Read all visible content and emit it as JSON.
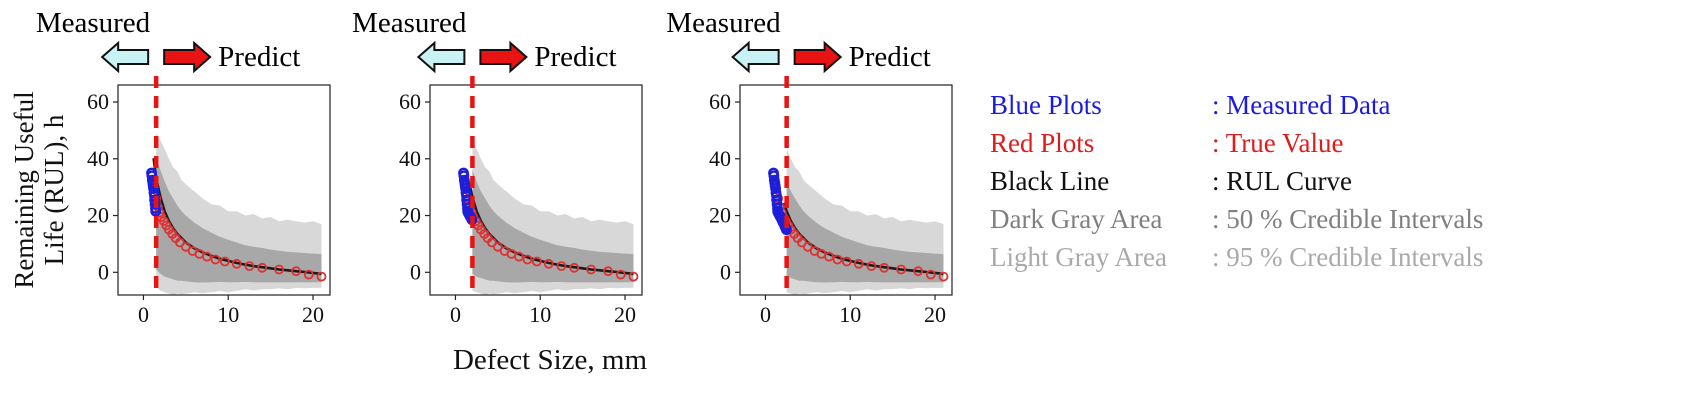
{
  "figure": {
    "y_axis_label": "Remaining Useful\nLife (RUL), h",
    "x_axis_label": "Defect Size, mm",
    "header": {
      "measured": "Measured",
      "predict": "Predict"
    }
  },
  "legend": {
    "items": [
      {
        "name": "Blue Plots",
        "desc": ": Measured Data",
        "color": "#1b1be0"
      },
      {
        "name": "Red Plots",
        "desc": ": True Value",
        "color": "#e01b1b"
      },
      {
        "name": "Black Line",
        "desc": ": RUL Curve",
        "color": "#111111"
      },
      {
        "name": "Dark Gray Area",
        "desc": ": 50 % Credible Intervals",
        "color": "#7f7f7f"
      },
      {
        "name": "Light Gray Area",
        "desc": ": 95 % Credible Intervals",
        "color": "#a9a9a9"
      }
    ]
  },
  "chart_data": {
    "type": "line",
    "title": "",
    "xlabel": "Defect Size, mm",
    "ylabel": "Remaining Useful Life (RUL), h",
    "xlim": [
      -3,
      22
    ],
    "ylim": [
      -8,
      66
    ],
    "x_ticks": [
      0,
      10,
      20
    ],
    "y_ticks": [
      0,
      20,
      40,
      60
    ],
    "grid": false,
    "band_x": [
      1.0,
      1.5,
      2,
      2.5,
      3,
      3.5,
      4,
      4.5,
      5,
      6,
      7,
      8,
      9,
      10,
      11,
      12,
      13,
      14,
      15,
      16,
      17,
      18,
      19,
      20,
      20.5,
      21
    ],
    "curve_y": [
      45,
      33,
      26.5,
      21.5,
      18,
      15.5,
      13.5,
      12,
      10.5,
      8.5,
      7,
      5.8,
      4.8,
      4,
      3.3,
      2.7,
      2.2,
      1.8,
      1.4,
      1.0,
      0.7,
      0.4,
      0.1,
      -0.2,
      -0.4,
      -0.6
    ],
    "band95_upper": [
      52,
      49,
      46.5,
      43.5,
      40,
      37,
      35.5,
      32.5,
      31,
      28.5,
      26,
      24,
      23.5,
      21.5,
      21.5,
      20,
      20.5,
      19,
      19.5,
      18,
      18.5,
      18,
      17.5,
      18,
      17.5,
      17
    ],
    "band95_lower": [
      -3,
      -5,
      -6.5,
      -7,
      -7.5,
      -8,
      -7.5,
      -7.8,
      -7.5,
      -7,
      -7.4,
      -7,
      -6.6,
      -7,
      -6.5,
      -6,
      -6.4,
      -6,
      -6,
      -5.6,
      -6,
      -5.5,
      -5.6,
      -5.5,
      -5.5,
      -5.5
    ],
    "band50_upper": [
      47,
      41,
      36,
      32,
      28.5,
      26,
      23.5,
      21.5,
      20,
      17.5,
      15.5,
      14,
      12.5,
      11.5,
      10.5,
      9.5,
      9,
      8.6,
      8,
      7.6,
      7.2,
      7,
      6.8,
      6.6,
      6.5,
      6.4
    ],
    "band50_lower": [
      5,
      1,
      -0.5,
      -1.5,
      -2,
      -2.5,
      -3,
      -3,
      -3.2,
      -3.5,
      -3.6,
      -3.5,
      -3.4,
      -3.5,
      -3.5,
      -3.4,
      -3.5,
      -3.5,
      -3.5,
      -3.5,
      -3.5,
      -3.5,
      -3.5,
      -3.5,
      -3.5,
      -3.5
    ],
    "true_points": [
      [
        1.5,
        26
      ],
      [
        1.7,
        23
      ],
      [
        1.9,
        21
      ],
      [
        2.1,
        19.5
      ],
      [
        2.4,
        18
      ],
      [
        2.7,
        16.5
      ],
      [
        3,
        15
      ],
      [
        3.4,
        13.5
      ],
      [
        3.8,
        12
      ],
      [
        4.3,
        10.5
      ],
      [
        5,
        9
      ],
      [
        5.8,
        7.5
      ],
      [
        6.6,
        6.5
      ],
      [
        7.5,
        5.5
      ],
      [
        8.5,
        4.5
      ],
      [
        9.6,
        3.8
      ],
      [
        11,
        3
      ],
      [
        12.5,
        2.2
      ],
      [
        14,
        1.6
      ],
      [
        16,
        1
      ],
      [
        18,
        0.4
      ],
      [
        19.5,
        -0.8
      ],
      [
        21,
        -1.5
      ]
    ],
    "panels": [
      {
        "label": "panel-1",
        "measure_line_x": 1.5,
        "measured_points": [
          [
            0.95,
            35
          ],
          [
            1.0,
            34
          ],
          [
            1.05,
            32.5
          ],
          [
            1.1,
            31.5
          ],
          [
            1.15,
            30.5
          ],
          [
            1.2,
            29.5
          ],
          [
            1.25,
            28
          ],
          [
            1.3,
            27
          ],
          [
            1.32,
            25.5
          ],
          [
            1.38,
            24
          ],
          [
            1.42,
            22.5
          ],
          [
            1.45,
            21.5
          ]
        ]
      },
      {
        "label": "panel-2",
        "measure_line_x": 2.0,
        "measured_points": [
          [
            0.95,
            35
          ],
          [
            1.0,
            34
          ],
          [
            1.05,
            32.5
          ],
          [
            1.1,
            31.5
          ],
          [
            1.15,
            30.5
          ],
          [
            1.2,
            29.5
          ],
          [
            1.25,
            28
          ],
          [
            1.3,
            27
          ],
          [
            1.32,
            25.5
          ],
          [
            1.38,
            24
          ],
          [
            1.42,
            22.5
          ],
          [
            1.45,
            21.5
          ],
          [
            1.5,
            21
          ],
          [
            1.6,
            20.5
          ],
          [
            1.68,
            20
          ],
          [
            1.78,
            19.5
          ],
          [
            1.88,
            19
          ],
          [
            1.95,
            18.5
          ]
        ]
      },
      {
        "label": "panel-3",
        "measure_line_x": 2.5,
        "measured_points": [
          [
            0.95,
            35
          ],
          [
            1.0,
            34
          ],
          [
            1.05,
            32.5
          ],
          [
            1.1,
            31.5
          ],
          [
            1.15,
            30.5
          ],
          [
            1.2,
            29.5
          ],
          [
            1.25,
            28
          ],
          [
            1.3,
            27
          ],
          [
            1.32,
            25.5
          ],
          [
            1.38,
            24
          ],
          [
            1.42,
            22.5
          ],
          [
            1.45,
            21.5
          ],
          [
            1.5,
            21
          ],
          [
            1.6,
            20.5
          ],
          [
            1.68,
            20
          ],
          [
            1.78,
            19.5
          ],
          [
            1.88,
            19
          ],
          [
            1.95,
            18.5
          ],
          [
            2.02,
            18
          ],
          [
            2.1,
            17.5
          ],
          [
            2.2,
            17
          ],
          [
            2.3,
            16.2
          ],
          [
            2.4,
            15.6
          ],
          [
            2.47,
            15
          ]
        ]
      }
    ],
    "colors": {
      "measured_arrow_fill": "#c9f2f4",
      "predict_arrow_fill": "#e81414",
      "divider": "#e81414",
      "curve": "#1a1a1a",
      "measured_marker": "#1f1fd9",
      "true_marker": "#e03030",
      "band50": "#a8a8a8",
      "band95": "#d8d8d8"
    }
  }
}
